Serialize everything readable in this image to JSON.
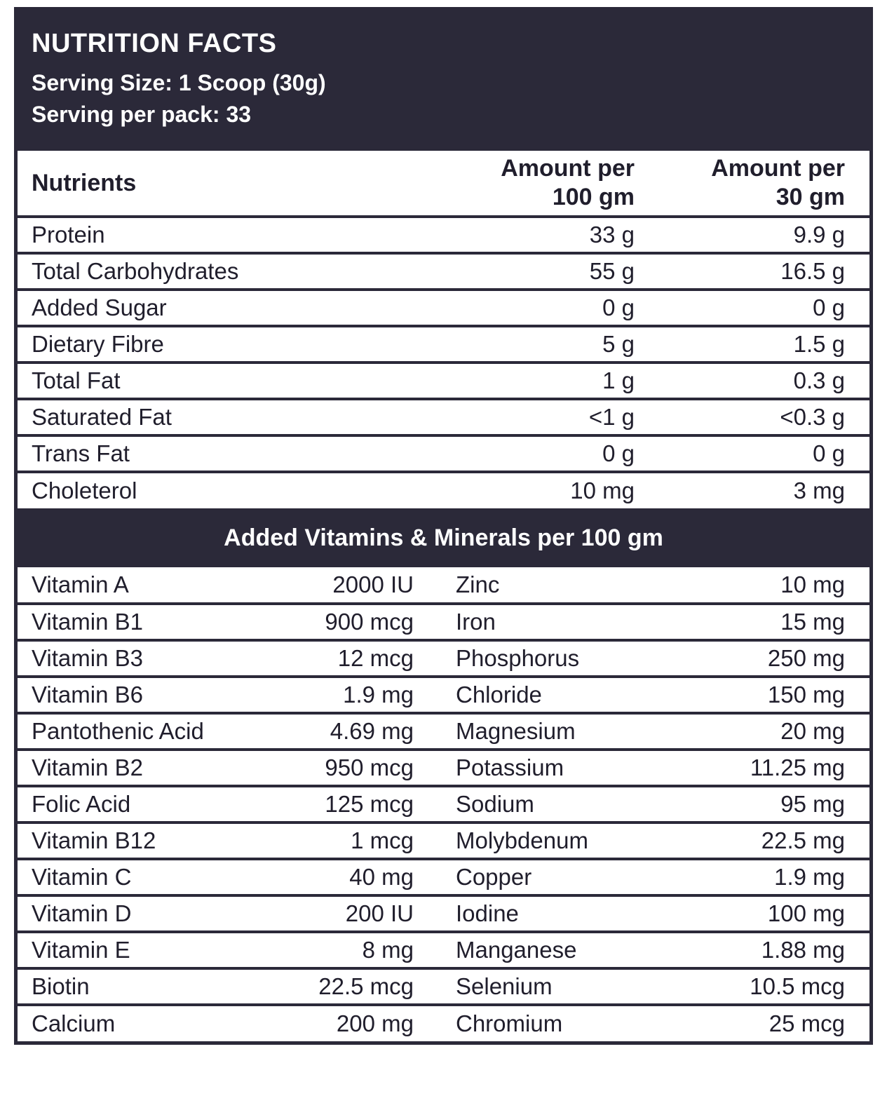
{
  "colors": {
    "dark_navy": "#2b2939",
    "text": "#201e2c",
    "background": "#ffffff"
  },
  "header": {
    "title": "NUTRITION FACTS",
    "serving_size": "Serving Size: 1 Scoop (30g)",
    "servings_per_pack": "Serving per pack: 33"
  },
  "nutrients_table": {
    "headers": {
      "name": "Nutrients",
      "per100": [
        "Amount per",
        "100 gm"
      ],
      "per30": [
        "Amount per",
        "30 gm"
      ]
    },
    "rows": [
      {
        "name": "Protein",
        "per100": "33 g",
        "per30": "9.9 g"
      },
      {
        "name": "Total Carbohydrates",
        "per100": "55 g",
        "per30": "16.5 g"
      },
      {
        "name": "Added Sugar",
        "per100": "0 g",
        "per30": "0 g"
      },
      {
        "name": "Dietary Fibre",
        "per100": "5 g",
        "per30": "1.5 g"
      },
      {
        "name": "Total Fat",
        "per100": "1 g",
        "per30": "0.3 g"
      },
      {
        "name": "Saturated Fat",
        "per100": "<1 g",
        "per30": "<0.3 g"
      },
      {
        "name": "Trans Fat",
        "per100": "0 g",
        "per30": "0 g"
      },
      {
        "name": "Choleterol",
        "per100": "10 mg",
        "per30": "3 mg"
      }
    ]
  },
  "vitamins_banner": "Added Vitamins & Minerals per 100 gm",
  "vitamins_table": {
    "rows": [
      {
        "left_name": "Vitamin A",
        "left_value": "2000 IU",
        "right_name": "Zinc",
        "right_value": "10 mg"
      },
      {
        "left_name": "Vitamin B1",
        "left_value": "900 mcg",
        "right_name": "Iron",
        "right_value": "15 mg"
      },
      {
        "left_name": "Vitamin B3",
        "left_value": "12 mcg",
        "right_name": "Phosphorus",
        "right_value": "250 mg"
      },
      {
        "left_name": "Vitamin B6",
        "left_value": "1.9 mg",
        "right_name": "Chloride",
        "right_value": "150 mg"
      },
      {
        "left_name": "Pantothenic Acid",
        "left_value": "4.69 mg",
        "right_name": "Magnesium",
        "right_value": "20 mg"
      },
      {
        "left_name": "Vitamin B2",
        "left_value": "950 mcg",
        "right_name": "Potassium",
        "right_value": "11.25 mg"
      },
      {
        "left_name": "Folic Acid",
        "left_value": "125 mcg",
        "right_name": "Sodium",
        "right_value": "95 mg"
      },
      {
        "left_name": "Vitamin B12",
        "left_value": "1 mcg",
        "right_name": "Molybdenum",
        "right_value": "22.5 mg"
      },
      {
        "left_name": "Vitamin C",
        "left_value": "40 mg",
        "right_name": "Copper",
        "right_value": "1.9 mg"
      },
      {
        "left_name": "Vitamin D",
        "left_value": "200 IU",
        "right_name": "Iodine",
        "right_value": "100 mg"
      },
      {
        "left_name": "Vitamin E",
        "left_value": "8 mg",
        "right_name": "Manganese",
        "right_value": "1.88 mg"
      },
      {
        "left_name": "Biotin",
        "left_value": "22.5 mcg",
        "right_name": "Selenium",
        "right_value": "10.5 mcg"
      },
      {
        "left_name": "Calcium",
        "left_value": "200 mg",
        "right_name": "Chromium",
        "right_value": "25 mcg"
      }
    ]
  }
}
